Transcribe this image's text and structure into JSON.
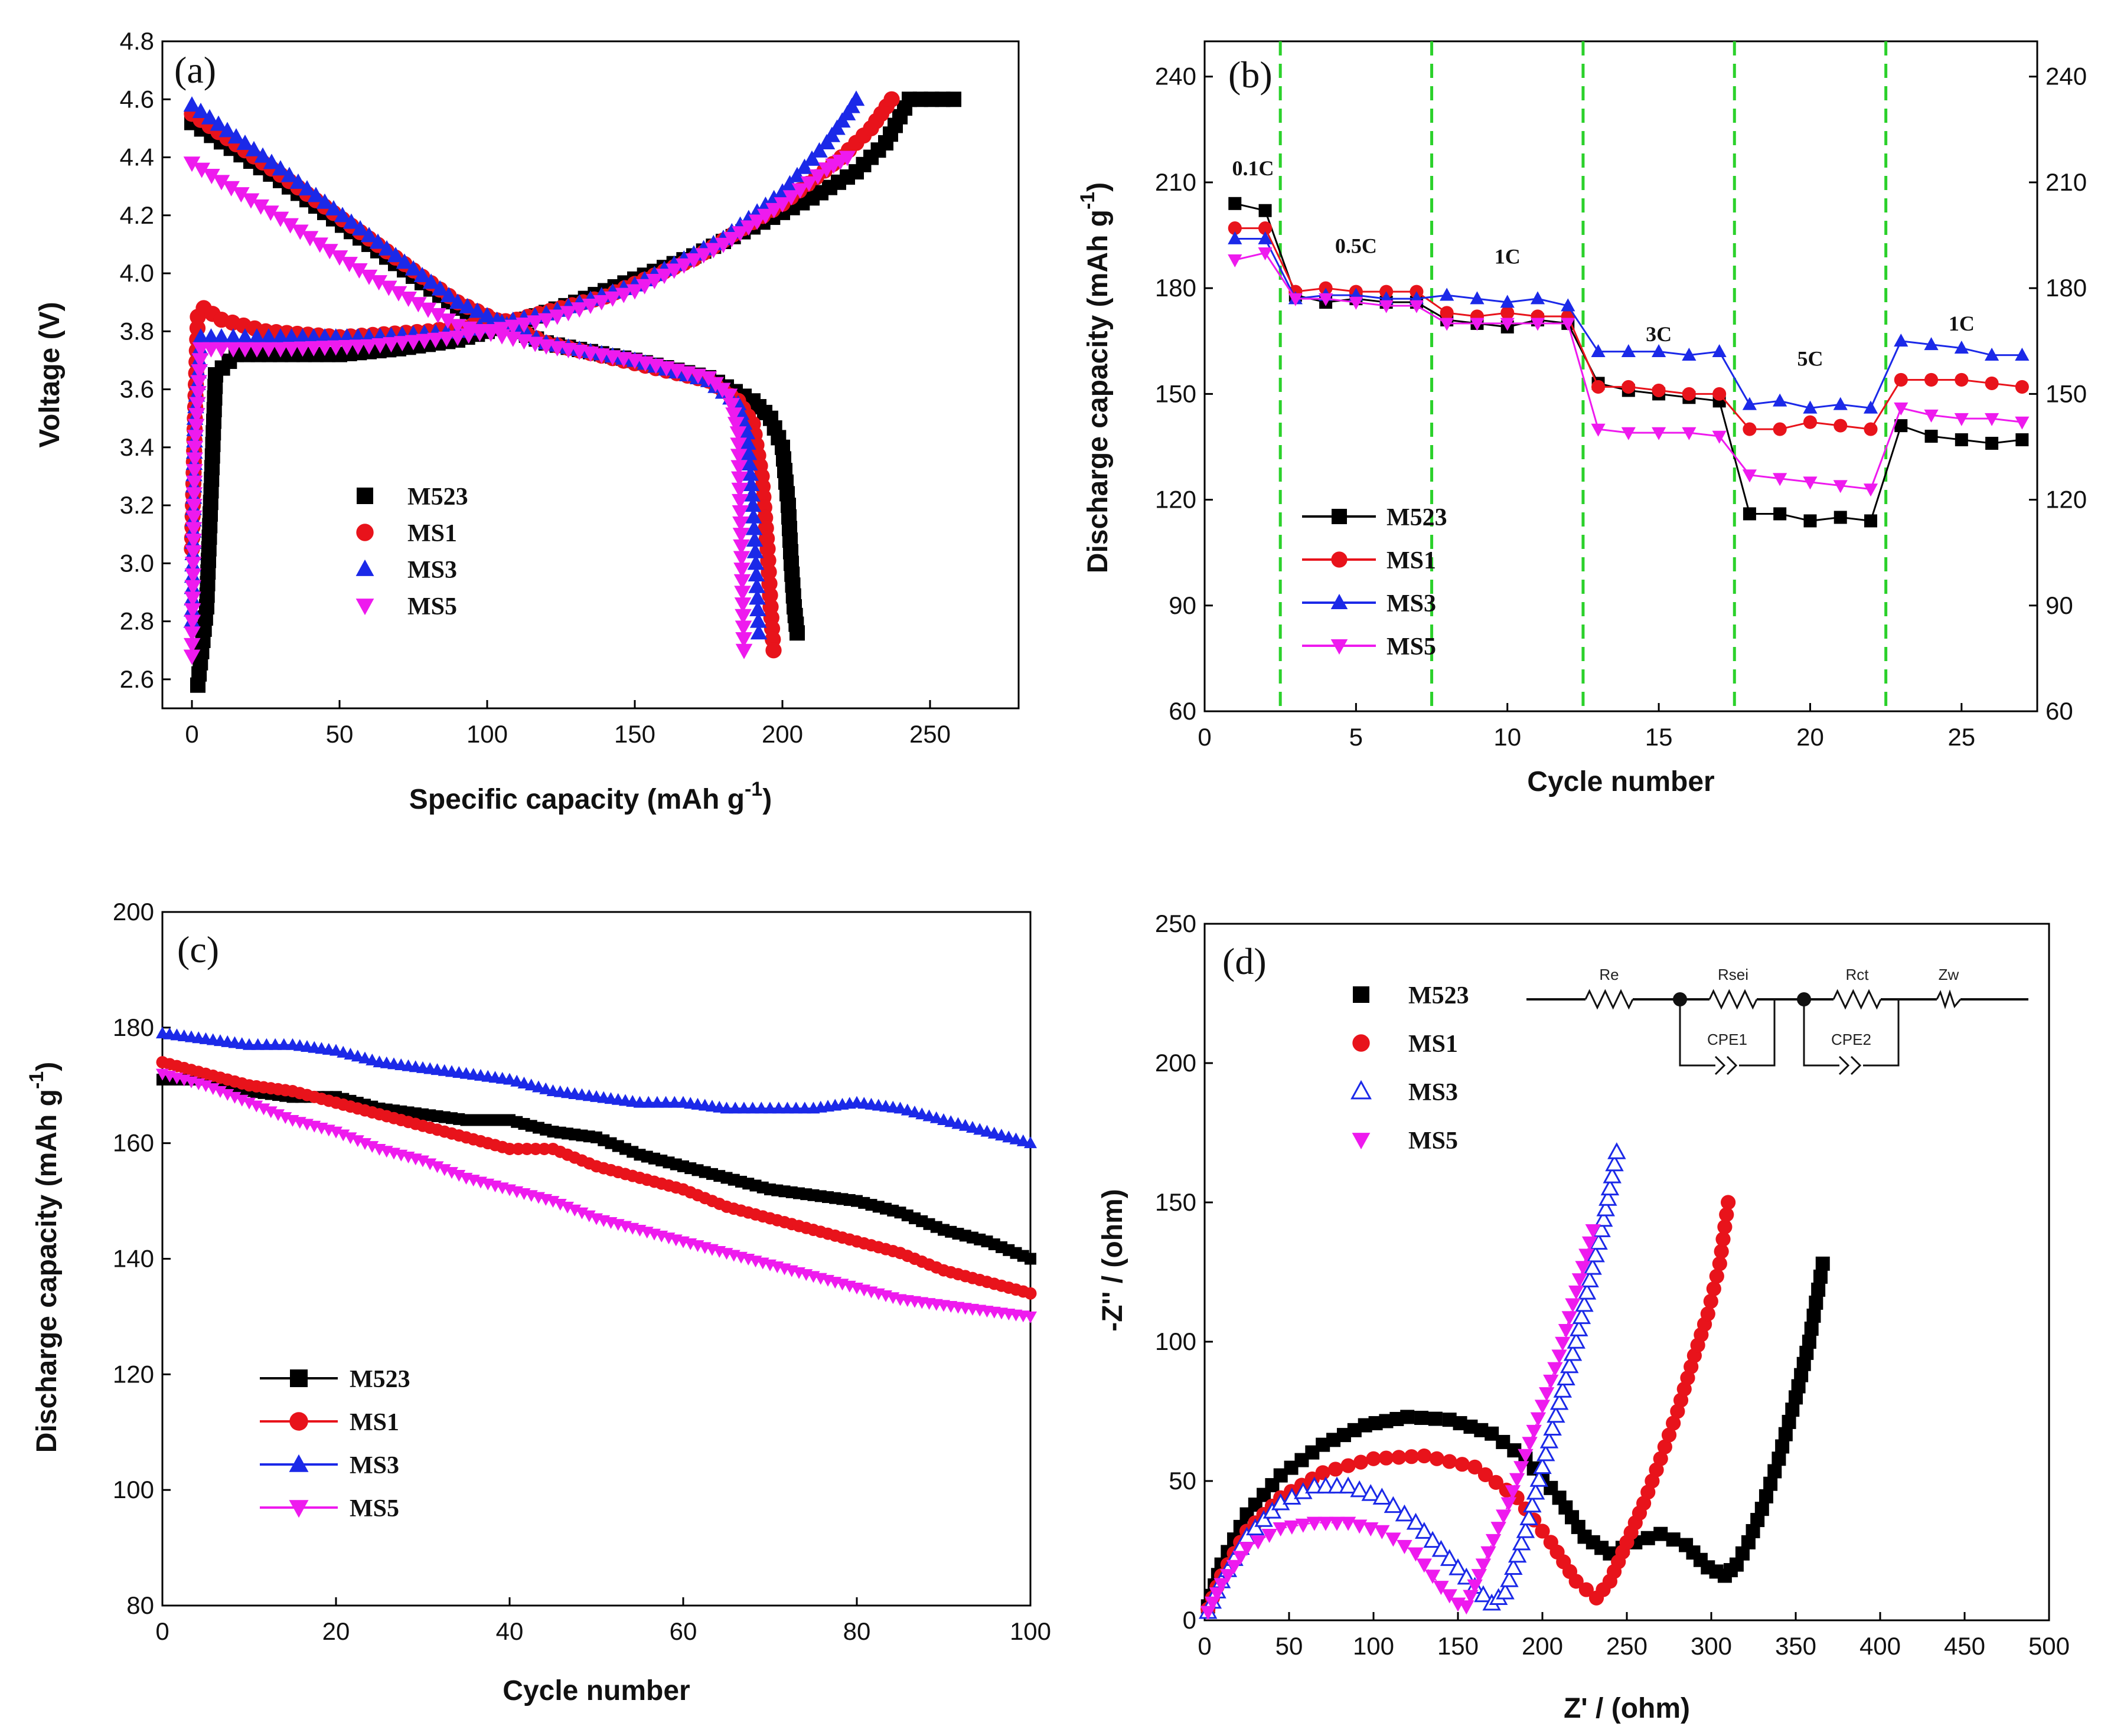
{
  "chart_data": [
    {
      "panel": "(a)",
      "type": "scatter",
      "xlabel": "Specific capacity (mAh g",
      "xlabel_sup": "-1",
      "xlabel_end": ")",
      "ylabel": "Voltage (V)",
      "xlim": [
        -10,
        280
      ],
      "ylim": [
        2.5,
        4.8
      ],
      "xticks": [
        0,
        50,
        100,
        150,
        200,
        250
      ],
      "yticks": [
        2.6,
        2.8,
        3.0,
        3.2,
        3.4,
        3.6,
        3.8,
        4.0,
        4.2,
        4.4,
        4.6,
        4.8
      ],
      "legend_position": "lower-left",
      "series": [
        {
          "name": "M523",
          "color": "#000000",
          "marker": "square",
          "charge": {
            "x": [
              2,
              5,
              8,
              15,
              30,
              50,
              70,
              90,
              110,
              130,
              150,
              170,
              190,
              210,
              225,
              235,
              243,
              258
            ],
            "y": [
              2.58,
              2.85,
              3.65,
              3.72,
              3.72,
              3.72,
              3.74,
              3.77,
              3.83,
              3.9,
              3.98,
              4.06,
              4.16,
              4.26,
              4.35,
              4.45,
              4.6,
              4.6
            ]
          },
          "discharge": {
            "x": [
              0,
              30,
              60,
              90,
              120,
              150,
              175,
              190,
              196,
              200,
              202,
              203,
              204,
              205
            ],
            "y": [
              4.52,
              4.32,
              4.1,
              3.88,
              3.76,
              3.7,
              3.64,
              3.56,
              3.5,
              3.4,
              3.2,
              3.0,
              2.85,
              2.76
            ]
          }
        },
        {
          "name": "MS1",
          "color": "#e8131b",
          "marker": "circle",
          "charge": {
            "x": [
              0,
              1,
              2,
              4,
              10,
              25,
              50,
              80,
              110,
              140,
              170,
              200,
              220,
              230,
              237
            ],
            "y": [
              3.05,
              3.5,
              3.85,
              3.88,
              3.84,
              3.8,
              3.78,
              3.8,
              3.84,
              3.92,
              4.05,
              4.24,
              4.4,
              4.5,
              4.6
            ]
          },
          "discharge": {
            "x": [
              0,
              30,
              60,
              90,
              120,
              150,
              175,
              185,
              190,
              193,
              195,
              196,
              197
            ],
            "y": [
              4.55,
              4.34,
              4.12,
              3.9,
              3.76,
              3.69,
              3.63,
              3.56,
              3.48,
              3.3,
              3.05,
              2.85,
              2.7
            ]
          }
        },
        {
          "name": "MS3",
          "color": "#1b29e8",
          "marker": "triangle-up",
          "charge": {
            "x": [
              0,
              1,
              3,
              10,
              30,
              60,
              90,
              120,
              150,
              180,
              200,
              215,
              222,
              225
            ],
            "y": [
              2.8,
              3.5,
              3.78,
              3.78,
              3.78,
              3.78,
              3.8,
              3.86,
              3.96,
              4.12,
              4.28,
              4.45,
              4.55,
              4.6
            ]
          },
          "discharge": {
            "x": [
              0,
              30,
              60,
              90,
              120,
              150,
              175,
              185,
              188,
              190,
              191,
              192
            ],
            "y": [
              4.58,
              4.36,
              4.13,
              3.9,
              3.76,
              3.7,
              3.63,
              3.55,
              3.45,
              3.2,
              3.0,
              2.76
            ]
          }
        },
        {
          "name": "MS5",
          "color": "#ee1aee",
          "marker": "triangle-down",
          "charge": {
            "x": [
              0,
              1,
              3,
              10,
              30,
              60,
              90,
              120,
              150,
              180,
              200,
              215,
              222
            ],
            "y": [
              2.68,
              3.4,
              3.74,
              3.74,
              3.74,
              3.75,
              3.78,
              3.84,
              3.94,
              4.1,
              4.24,
              4.36,
              4.4
            ]
          },
          "discharge": {
            "x": [
              0,
              30,
              60,
              90,
              120,
              150,
              175,
              182,
              185,
              186,
              187
            ],
            "y": [
              4.38,
              4.19,
              3.99,
              3.82,
              3.75,
              3.7,
              3.64,
              3.58,
              3.45,
              3.1,
              2.7
            ]
          }
        }
      ]
    },
    {
      "panel": "(b)",
      "type": "line",
      "xlabel": "Cycle number",
      "ylabel": "Discharge capacity (mAh g",
      "ylabel_sup": "-1",
      "ylabel_end": ")",
      "xlim": [
        0,
        27.5
      ],
      "ylim": [
        60,
        250
      ],
      "xticks": [
        0,
        5,
        10,
        15,
        20,
        25
      ],
      "yticks": [
        60,
        90,
        120,
        150,
        180,
        210,
        240
      ],
      "dividers": [
        2.5,
        7.5,
        12.5,
        17.5,
        22.5
      ],
      "rate_labels": [
        {
          "text": "0.1C",
          "x": 1.6,
          "y": 212
        },
        {
          "text": "0.5C",
          "x": 5.0,
          "y": 190
        },
        {
          "text": "1C",
          "x": 10.0,
          "y": 187
        },
        {
          "text": "3C",
          "x": 15.0,
          "y": 165
        },
        {
          "text": "5C",
          "x": 20.0,
          "y": 158
        },
        {
          "text": "1C",
          "x": 25.0,
          "y": 168
        }
      ],
      "legend_position": "lower-left",
      "x": [
        1,
        2,
        3,
        4,
        5,
        6,
        7,
        8,
        9,
        10,
        11,
        12,
        13,
        14,
        15,
        16,
        17,
        18,
        19,
        20,
        21,
        22,
        23,
        24,
        25,
        26,
        27
      ],
      "series": [
        {
          "name": "M523",
          "color": "#000000",
          "marker": "square",
          "values": [
            204,
            202,
            178,
            176,
            177,
            176,
            176,
            171,
            170,
            169,
            171,
            170,
            153,
            151,
            150,
            149,
            148,
            116,
            116,
            114,
            115,
            114,
            141,
            138,
            137,
            136,
            137
          ]
        },
        {
          "name": "MS1",
          "color": "#e8131b",
          "marker": "circle",
          "values": [
            197,
            197,
            179,
            180,
            179,
            179,
            179,
            173,
            172,
            173,
            172,
            172,
            152,
            152,
            151,
            150,
            150,
            140,
            140,
            142,
            141,
            140,
            154,
            154,
            154,
            153,
            152
          ]
        },
        {
          "name": "MS3",
          "color": "#1b29e8",
          "marker": "triangle-up",
          "values": [
            194,
            194,
            177,
            178,
            178,
            177,
            177,
            178,
            177,
            176,
            177,
            175,
            162,
            162,
            162,
            161,
            162,
            147,
            148,
            146,
            147,
            146,
            165,
            164,
            163,
            161,
            161
          ]
        },
        {
          "name": "MS5",
          "color": "#ee1aee",
          "marker": "triangle-down",
          "values": [
            188,
            190,
            177,
            177,
            176,
            175,
            175,
            170,
            170,
            170,
            170,
            170,
            140,
            139,
            139,
            139,
            138,
            127,
            126,
            125,
            124,
            123,
            146,
            144,
            143,
            143,
            142
          ]
        }
      ]
    },
    {
      "panel": "(c)",
      "type": "line",
      "xlabel": "Cycle number",
      "ylabel": "Discharge capacity (mAh g",
      "ylabel_sup": "-1",
      "ylabel_end": ")",
      "xlim": [
        0,
        100
      ],
      "ylim": [
        80,
        200
      ],
      "xticks": [
        0,
        20,
        40,
        60,
        80,
        100
      ],
      "yticks": [
        80,
        100,
        120,
        140,
        160,
        180,
        200
      ],
      "legend_position": "lower-left",
      "series": [
        {
          "name": "M523",
          "color": "#000000",
          "marker": "square",
          "x": [
            0,
            5,
            10,
            15,
            20,
            25,
            30,
            35,
            40,
            45,
            50,
            55,
            60,
            65,
            70,
            75,
            80,
            85,
            90,
            95,
            100
          ],
          "values": [
            171,
            171,
            169,
            168,
            168,
            166,
            165,
            164,
            164,
            162,
            161,
            158,
            156,
            154,
            152,
            151,
            150,
            148,
            145,
            143,
            140
          ]
        },
        {
          "name": "MS1",
          "color": "#e8131b",
          "marker": "circle",
          "x": [
            0,
            5,
            10,
            15,
            20,
            25,
            30,
            35,
            40,
            45,
            50,
            55,
            60,
            65,
            70,
            75,
            80,
            85,
            90,
            95,
            100
          ],
          "values": [
            174,
            172,
            170,
            169,
            167,
            165,
            163,
            161,
            159,
            159,
            156,
            154,
            152,
            149,
            147,
            145,
            143,
            141,
            138,
            136,
            134
          ]
        },
        {
          "name": "MS3",
          "color": "#1b29e8",
          "marker": "triangle-up",
          "x": [
            0,
            5,
            10,
            15,
            20,
            25,
            30,
            35,
            40,
            45,
            50,
            55,
            60,
            65,
            70,
            75,
            80,
            85,
            90,
            95,
            100
          ],
          "values": [
            179,
            178,
            177,
            177,
            176,
            174,
            173,
            172,
            171,
            169,
            168,
            167,
            167,
            166,
            166,
            166,
            167,
            166,
            164,
            162,
            160
          ]
        },
        {
          "name": "MS5",
          "color": "#ee1aee",
          "marker": "triangle-down",
          "x": [
            0,
            5,
            10,
            15,
            20,
            25,
            30,
            35,
            40,
            45,
            50,
            55,
            60,
            65,
            70,
            75,
            80,
            85,
            90,
            95,
            100
          ],
          "values": [
            172,
            170,
            167,
            164,
            162,
            159,
            157,
            154,
            152,
            150,
            147,
            145,
            143,
            141,
            139,
            137,
            135,
            133,
            132,
            131,
            130
          ]
        }
      ]
    },
    {
      "panel": "(d)",
      "type": "scatter",
      "xlabel": "Z' / (ohm)",
      "ylabel": "-Z'' / (ohm)",
      "xlim": [
        0,
        500
      ],
      "ylim": [
        0,
        250
      ],
      "xticks": [
        0,
        50,
        100,
        150,
        200,
        250,
        300,
        350,
        400,
        450,
        500
      ],
      "yticks": [
        0,
        50,
        100,
        150,
        200,
        250
      ],
      "legend_position": "top-left",
      "circuit_labels": [
        "Re",
        "Rsei",
        "Rct",
        "Zw",
        "CPE1",
        "CPE2"
      ],
      "series": [
        {
          "name": "M523",
          "color": "#000000",
          "marker": "square",
          "x": [
            2,
            10,
            25,
            45,
            70,
            95,
            120,
            145,
            170,
            190,
            210,
            225,
            240,
            255,
            270,
            285,
            298,
            308,
            315,
            322,
            330,
            340,
            350,
            358,
            366
          ],
          "values": [
            5,
            20,
            38,
            52,
            63,
            70,
            73,
            72,
            67,
            58,
            44,
            30,
            24,
            28,
            31,
            27,
            19,
            16,
            20,
            28,
            40,
            58,
            80,
            100,
            128
          ]
        },
        {
          "name": "MS1",
          "color": "#e8131b",
          "marker": "circle",
          "x": [
            2,
            10,
            25,
            45,
            70,
            100,
            130,
            160,
            185,
            205,
            220,
            232,
            240,
            250,
            260,
            270,
            280,
            290,
            298,
            305,
            310
          ],
          "values": [
            4,
            16,
            32,
            44,
            53,
            58,
            59,
            55,
            44,
            28,
            14,
            8,
            14,
            28,
            42,
            58,
            75,
            95,
            110,
            128,
            150
          ]
        },
        {
          "name": "MS3",
          "color": "#1b29e8",
          "marker": "triangle-up-open",
          "x": [
            2,
            10,
            25,
            45,
            65,
            85,
            105,
            125,
            145,
            160,
            170,
            178,
            190,
            200,
            210,
            220,
            228,
            235,
            240,
            244
          ],
          "values": [
            3,
            14,
            30,
            42,
            48,
            48,
            44,
            35,
            22,
            12,
            6,
            10,
            32,
            55,
            78,
            100,
            122,
            140,
            155,
            168
          ]
        },
        {
          "name": "MS5",
          "color": "#ee1aee",
          "marker": "triangle-down",
          "x": [
            2,
            10,
            25,
            45,
            65,
            85,
            105,
            125,
            140,
            150,
            155,
            165,
            180,
            195,
            210,
            220,
            230
          ],
          "values": [
            3,
            13,
            26,
            33,
            35,
            35,
            32,
            24,
            12,
            6,
            5,
            20,
            42,
            68,
            95,
            118,
            140
          ]
        }
      ]
    }
  ]
}
